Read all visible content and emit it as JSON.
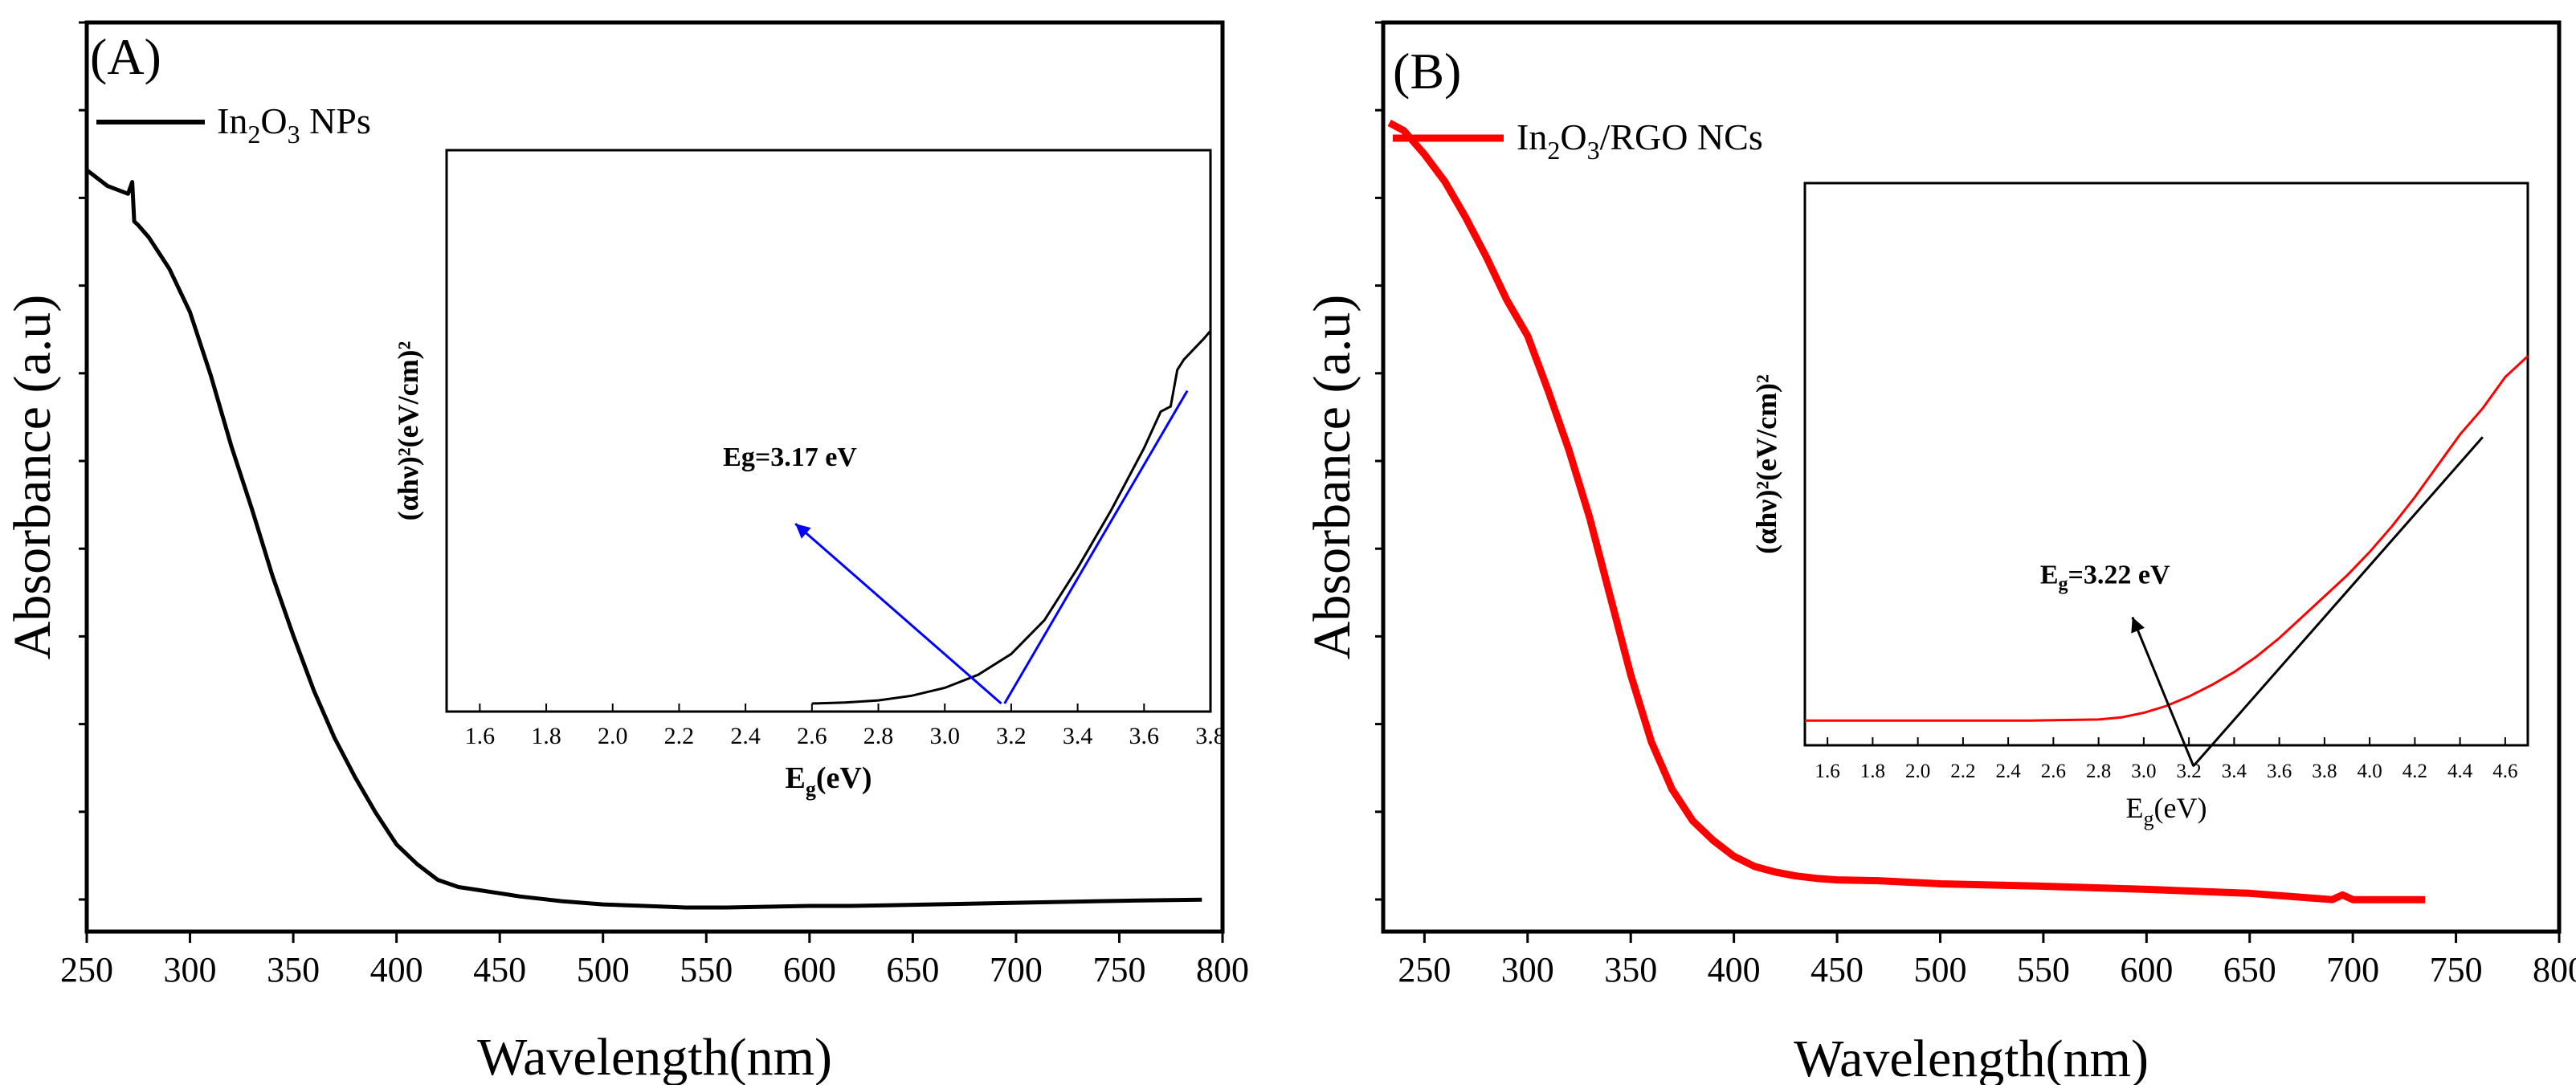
{
  "chart_data": [
    {
      "type": "line",
      "panel_label": "(A)",
      "xlabel": "Wavelength(nm)",
      "ylabel": "Absorbance (a.u)",
      "xlim": [
        250,
        800
      ],
      "ylim": [
        0,
        1
      ],
      "x_ticks": [
        "250",
        "300",
        "350",
        "400",
        "450",
        "500",
        "550",
        "600",
        "650",
        "700",
        "750",
        "800"
      ],
      "y_tick_labels": false,
      "legend": {
        "position": "top-left",
        "prefix": "In",
        "sub1": "2",
        "mid": "O",
        "sub2": "3",
        "suffix": " NPs"
      },
      "series": [
        {
          "color": "#000000",
          "x": [
            250,
            255,
            260,
            265,
            270,
            272,
            273,
            275,
            280,
            290,
            300,
            310,
            320,
            330,
            340,
            350,
            360,
            370,
            380,
            390,
            400,
            410,
            420,
            430,
            440,
            450,
            460,
            470,
            480,
            490,
            500,
            510,
            520,
            530,
            540,
            560,
            580,
            600,
            620,
            640,
            660,
            680,
            700,
            720,
            740,
            760,
            790
          ],
          "y": [
            0.935,
            0.925,
            0.915,
            0.91,
            0.905,
            0.92,
            0.87,
            0.865,
            0.85,
            0.81,
            0.755,
            0.675,
            0.585,
            0.505,
            0.42,
            0.345,
            0.275,
            0.215,
            0.165,
            0.12,
            0.08,
            0.055,
            0.035,
            0.026,
            0.022,
            0.018,
            0.014,
            0.011,
            0.008,
            0.006,
            0.004,
            0.003,
            0.002,
            0.001,
            0.0,
            0.0,
            0.001,
            0.002,
            0.002,
            0.003,
            0.004,
            0.005,
            0.006,
            0.007,
            0.008,
            0.009,
            0.01
          ]
        }
      ],
      "inset": {
        "xlabel_main": "E",
        "xlabel_sub": "g",
        "xlabel_tail": "(eV)",
        "ylabel": "(αhν)²(eV/cm)²",
        "xlim": [
          1.5,
          3.8
        ],
        "ylim": [
          0,
          1
        ],
        "x_ticks": [
          "1.6",
          "1.8",
          "2.0",
          "2.2",
          "2.4",
          "2.6",
          "2.8",
          "3.0",
          "3.2",
          "3.4",
          "3.6",
          "3.8"
        ],
        "annotation": "Eg=3.17 eV",
        "tangent_color": "#0000ff",
        "curve_color": "#000000",
        "curve": {
          "x": [
            2.6,
            2.7,
            2.8,
            2.9,
            3.0,
            3.1,
            3.2,
            3.3,
            3.4,
            3.5,
            3.6,
            3.65,
            3.68,
            3.7,
            3.72,
            3.75,
            3.78,
            3.8
          ],
          "y": [
            0.0,
            0.002,
            0.006,
            0.015,
            0.03,
            0.055,
            0.095,
            0.16,
            0.26,
            0.37,
            0.49,
            0.56,
            0.57,
            0.64,
            0.66,
            0.68,
            0.7,
            0.715
          ]
        },
        "tangent": {
          "x": [
            3.18,
            3.73
          ],
          "y": [
            0.0,
            0.6
          ]
        },
        "arrow": {
          "x": [
            3.17,
            2.55
          ],
          "y": [
            0.0,
            0.345
          ]
        }
      }
    },
    {
      "type": "line",
      "panel_label": "(B)",
      "xlabel": "Wavelength(nm)",
      "ylabel": "Absorbance (a.u)",
      "xlim": [
        230,
        800
      ],
      "ylim": [
        0,
        1
      ],
      "x_ticks": [
        "250",
        "300",
        "350",
        "400",
        "450",
        "500",
        "550",
        "600",
        "650",
        "700",
        "750",
        "800"
      ],
      "y_tick_labels": false,
      "legend": {
        "position": "top-left",
        "prefix": "In",
        "sub1": "2",
        "mid": "O",
        "sub2": "3",
        "suffix": "/RGO NCs"
      },
      "series": [
        {
          "color": "#ff0000",
          "x": [
            233,
            240,
            250,
            260,
            270,
            280,
            290,
            300,
            310,
            320,
            330,
            340,
            350,
            360,
            370,
            380,
            390,
            400,
            410,
            420,
            430,
            440,
            450,
            470,
            500,
            550,
            600,
            650,
            690,
            695,
            700,
            735
          ],
          "y": [
            0.995,
            0.985,
            0.955,
            0.92,
            0.875,
            0.825,
            0.77,
            0.725,
            0.655,
            0.58,
            0.495,
            0.395,
            0.295,
            0.21,
            0.15,
            0.11,
            0.085,
            0.065,
            0.052,
            0.045,
            0.04,
            0.037,
            0.035,
            0.034,
            0.03,
            0.027,
            0.023,
            0.018,
            0.01,
            0.016,
            0.01,
            0.01
          ]
        }
      ],
      "inset": {
        "xlabel_main": "E",
        "xlabel_sub": "g",
        "xlabel_tail": "(eV)",
        "ylabel": "(αhν)²(eV/cm)²",
        "xlim": [
          1.5,
          4.7
        ],
        "ylim": [
          0,
          1
        ],
        "x_ticks": [
          "1.6",
          "1.8",
          "2.0",
          "2.2",
          "2.4",
          "2.6",
          "2.8",
          "3.0",
          "3.2",
          "3.4",
          "3.6",
          "3.8",
          "4.0",
          "4.2",
          "4.4",
          "4.6"
        ],
        "annotation": "Eg=3.22 eV",
        "tangent_color": "#000000",
        "curve_color": "#ff0000",
        "curve": {
          "x": [
            1.5,
            2.0,
            2.5,
            2.8,
            2.9,
            3.0,
            3.1,
            3.2,
            3.3,
            3.4,
            3.5,
            3.6,
            3.7,
            3.8,
            3.9,
            4.0,
            4.1,
            4.2,
            4.3,
            4.4,
            4.5,
            4.6,
            4.7
          ],
          "y": [
            0.032,
            0.032,
            0.032,
            0.034,
            0.038,
            0.047,
            0.06,
            0.078,
            0.1,
            0.125,
            0.155,
            0.19,
            0.23,
            0.27,
            0.31,
            0.355,
            0.405,
            0.46,
            0.52,
            0.58,
            0.63,
            0.69,
            0.73
          ]
        },
        "tangent": {
          "x": [
            3.22,
            4.5
          ],
          "y": [
            -0.055,
            0.575
          ]
        },
        "arrow": {
          "x": [
            3.22,
            2.95
          ],
          "y": [
            -0.055,
            0.23
          ]
        }
      }
    }
  ]
}
